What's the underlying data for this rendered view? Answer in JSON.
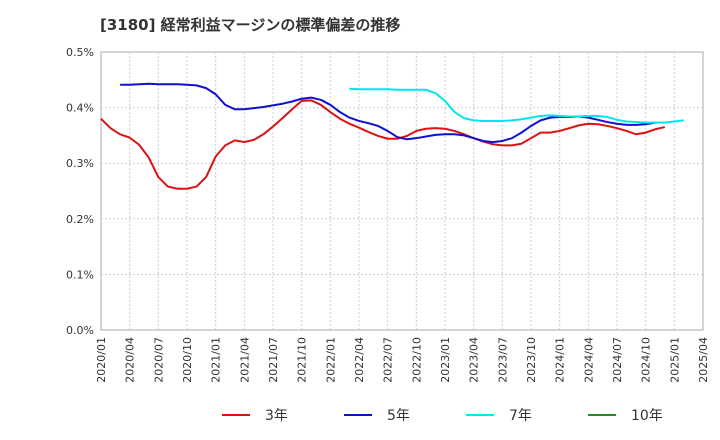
{
  "chart_data": {
    "type": "line",
    "title": "[3180]  経常利益マージンの標準偏差の推移",
    "xlabel": "",
    "ylabel": "",
    "ylim": [
      0,
      0.5
    ],
    "y_ticks": [
      "0.0%",
      "0.1%",
      "0.2%",
      "0.3%",
      "0.4%",
      "0.5%"
    ],
    "x_ticks": [
      "2020/01",
      "2020/04",
      "2020/07",
      "2020/10",
      "2021/01",
      "2021/04",
      "2021/07",
      "2021/10",
      "2022/01",
      "2022/04",
      "2022/07",
      "2022/10",
      "2023/01",
      "2023/04",
      "2023/07",
      "2023/10",
      "2024/01",
      "2024/04",
      "2024/07",
      "2024/10",
      "2025/01",
      "2025/04"
    ],
    "x_start": "2020/01",
    "x_end": "2025/04",
    "grid": true,
    "legend_position": "bottom",
    "series": [
      {
        "name": "3年",
        "color": "#dd1111",
        "start": "2020/01",
        "values": [
          0.38,
          0.363,
          0.352,
          0.346,
          0.333,
          0.31,
          0.275,
          0.258,
          0.254,
          0.254,
          0.258,
          0.275,
          0.312,
          0.332,
          0.341,
          0.338,
          0.342,
          0.352,
          0.366,
          0.381,
          0.397,
          0.412,
          0.413,
          0.405,
          0.392,
          0.38,
          0.371,
          0.364,
          0.356,
          0.349,
          0.344,
          0.344,
          0.349,
          0.358,
          0.362,
          0.363,
          0.362,
          0.358,
          0.352,
          0.345,
          0.339,
          0.334,
          0.332,
          0.332,
          0.335,
          0.345,
          0.355,
          0.355,
          0.358,
          0.363,
          0.368,
          0.371,
          0.37,
          0.367,
          0.363,
          0.358,
          0.352,
          0.355,
          0.361,
          0.365
        ]
      },
      {
        "name": "5年",
        "color": "#1111cc",
        "start": "2020/03",
        "values": [
          0.441,
          0.441,
          0.442,
          0.443,
          0.442,
          0.442,
          0.442,
          0.441,
          0.44,
          0.435,
          0.424,
          0.405,
          0.397,
          0.397,
          0.399,
          0.401,
          0.404,
          0.407,
          0.411,
          0.416,
          0.418,
          0.414,
          0.405,
          0.392,
          0.382,
          0.376,
          0.372,
          0.367,
          0.358,
          0.347,
          0.343,
          0.345,
          0.348,
          0.351,
          0.352,
          0.352,
          0.35,
          0.345,
          0.34,
          0.338,
          0.34,
          0.345,
          0.355,
          0.367,
          0.377,
          0.382,
          0.383,
          0.383,
          0.384,
          0.382,
          0.378,
          0.374,
          0.371,
          0.369,
          0.369,
          0.37,
          0.373
        ]
      },
      {
        "name": "7年",
        "color": "#00e5ee",
        "start": "2022/03",
        "values": [
          0.434,
          0.433,
          0.433,
          0.433,
          0.433,
          0.432,
          0.432,
          0.432,
          0.432,
          0.426,
          0.412,
          0.392,
          0.381,
          0.377,
          0.376,
          0.376,
          0.376,
          0.377,
          0.379,
          0.382,
          0.385,
          0.386,
          0.385,
          0.384,
          0.384,
          0.385,
          0.385,
          0.383,
          0.378,
          0.375,
          0.374,
          0.373,
          0.373,
          0.373,
          0.375,
          0.377
        ]
      },
      {
        "name": "10年",
        "color": "#228b22",
        "start": "2020/01",
        "values": []
      }
    ]
  }
}
